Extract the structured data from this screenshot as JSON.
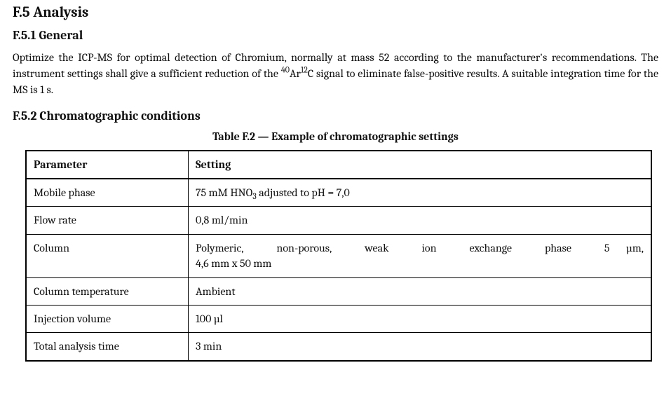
{
  "sec": {
    "h1": "F.5  Analysis",
    "s1": {
      "h2": "F.5.1  General",
      "p_parts": [
        "Optimize the ICP-MS for optimal detection of Chromium, normally at mass 52 according to the manufacturer's recommendations. The instrument settings shall give a sufficient reduction of the ",
        "40",
        "Ar",
        "12",
        "C signal to eliminate false-positive results. A suitable integration time for the MS is 1 s."
      ]
    },
    "s2": {
      "h2": "F.5.2  Chromatographic conditions",
      "caption": "Table F.2 — Example of chromatographic settings",
      "columns": [
        "Parameter",
        "Setting"
      ],
      "rows": [
        {
          "param": "Mobile phase",
          "setting_parts": [
            "75 mM HNO",
            "3",
            " adjusted to pH = 7,0"
          ]
        },
        {
          "param": "Flow rate",
          "setting_parts": [
            "0,8 ml/min"
          ]
        },
        {
          "param": "Column",
          "setting_parts": [
            "Polymeric, non-porous, weak ion exchange phase 5 µm, 4,6 mm x 50 mm"
          ]
        },
        {
          "param": "Column temperature",
          "setting_parts": [
            "Ambient"
          ]
        },
        {
          "param": "Injection volume",
          "setting_parts": [
            "100 µl"
          ]
        },
        {
          "param": "Total analysis time",
          "setting_parts": [
            "3 min"
          ]
        }
      ]
    }
  }
}
